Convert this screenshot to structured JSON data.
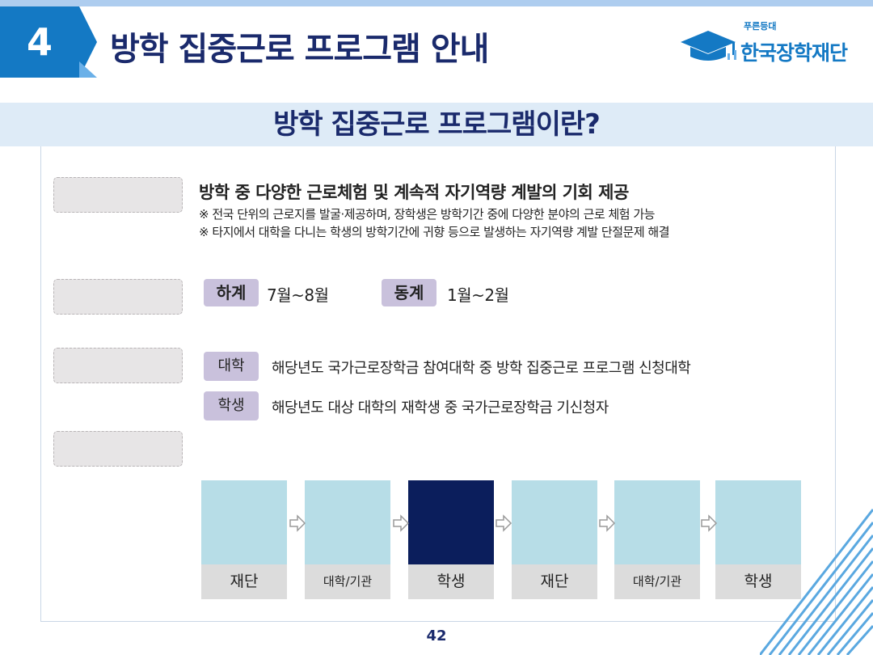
{
  "header": {
    "section_number": "4",
    "section_title": "방학 집중근로 프로그램 안내",
    "logo_sub": "푸른등대",
    "logo_main": "한국장학재단"
  },
  "subtitle": "방학 집중근로 프로그램이란?",
  "purpose": {
    "heading": "방학 중 다양한 근로체험 및 계속적 자기역량 계발의 기회 제공",
    "notes": [
      "※ 전국 단위의 근로지를 발굴·제공하며, 장학생은 방학기간 중에 다양한 분야의 근로 체험 가능",
      "※ 타지에서 대학을 다니는 학생의 방학기간에 귀향 등으로 발생하는 자기역량 계발 단절문제 해결"
    ]
  },
  "period": {
    "summer_tag": "하계",
    "summer_value": "7월~8월",
    "winter_tag": "동계",
    "winter_value": "1월~2월"
  },
  "eligibility": {
    "univ_tag": "대학",
    "univ_text": "해당년도 국가근로장학금 참여대학 중 방학 집중근로 프로그램 신청대학",
    "student_tag": "학생",
    "student_text": "해당년도 대상 대학의 재학생 중 국가근로장학금 기신청자"
  },
  "flow": {
    "steps": [
      "재단",
      "대학/기관",
      "학생",
      "재단",
      "대학/기관",
      "학생"
    ]
  },
  "page_number": "42",
  "colors": {
    "primary_blue": "#1479c4",
    "navy": "#1a2a6c",
    "tag_purple": "#c9c1dc",
    "flow_light": "#b7dde7",
    "flow_dark": "#0b1e5c"
  }
}
